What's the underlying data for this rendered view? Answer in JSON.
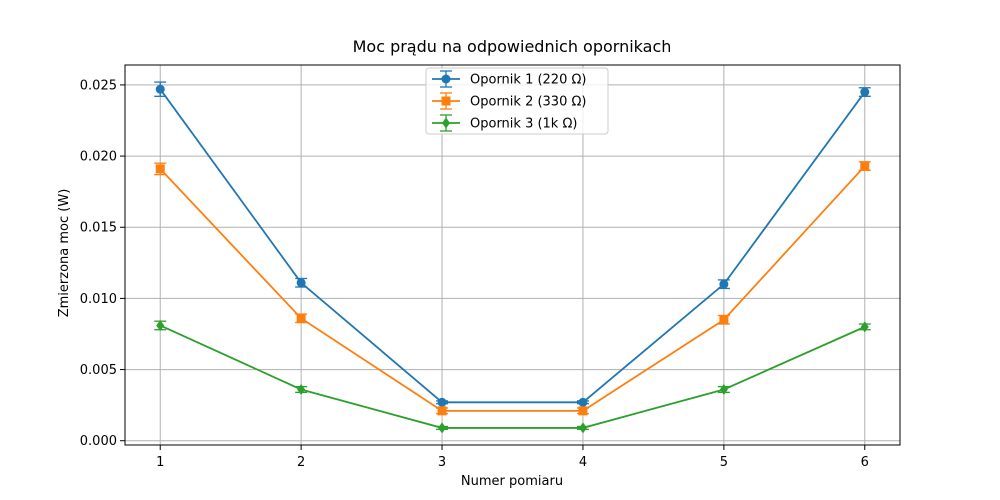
{
  "chart_data": {
    "type": "line",
    "title": "Moc prądu na odpowiednich opornikach",
    "xlabel": "Numer pomiaru",
    "ylabel": "Zmierzona moc (W)",
    "x": [
      1,
      2,
      3,
      4,
      5,
      6
    ],
    "xticks": [
      "1",
      "2",
      "3",
      "4",
      "5",
      "6"
    ],
    "xlim": [
      0.75,
      6.25
    ],
    "ylim": [
      -0.0003,
      0.0264
    ],
    "yticks": [
      "0.000",
      "0.005",
      "0.010",
      "0.015",
      "0.020",
      "0.025"
    ],
    "ytick_values": [
      0,
      0.005,
      0.01,
      0.015,
      0.02,
      0.025
    ],
    "grid": true,
    "legend_position": "top-center",
    "series": [
      {
        "name": "Opornik 1 (220 Ω)",
        "color": "#1f77b4",
        "marker": "circle",
        "values": [
          0.0247,
          0.0111,
          0.0027,
          0.0027,
          0.011,
          0.0245
        ],
        "errors": [
          0.0005,
          0.0003,
          0.0001,
          0.0001,
          0.0003,
          0.0003
        ]
      },
      {
        "name": "Opornik 2 (330 Ω)",
        "color": "#ff7f0e",
        "marker": "square",
        "values": [
          0.0191,
          0.0086,
          0.0021,
          0.0021,
          0.0085,
          0.0193
        ],
        "errors": [
          0.0004,
          0.0003,
          0.0002,
          0.0002,
          0.0003,
          0.0003
        ]
      },
      {
        "name": "Opornik 3 (1k Ω)",
        "color": "#2ca02c",
        "marker": "diamond",
        "values": [
          0.0081,
          0.0036,
          0.0009,
          0.0009,
          0.0036,
          0.008
        ],
        "errors": [
          0.0003,
          0.0002,
          0.0001,
          0.0001,
          0.0002,
          0.0002
        ]
      }
    ]
  }
}
